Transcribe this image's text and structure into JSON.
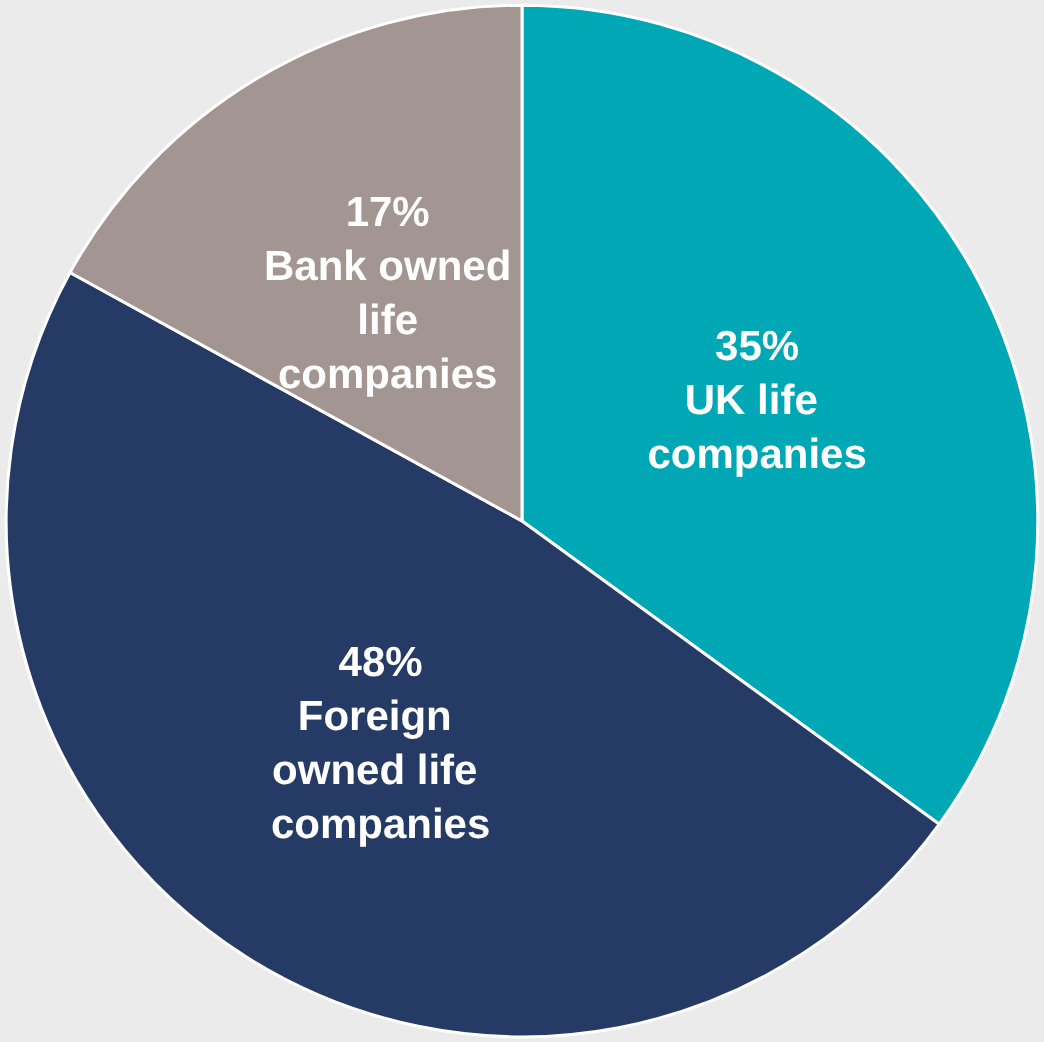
{
  "chart_data": {
    "type": "pie",
    "categories": [
      "UK life companies",
      "Foreign owned life companies",
      "Bank owned life companies"
    ],
    "values": [
      35,
      48,
      17
    ],
    "colors": [
      "#00a8b5",
      "#263a66",
      "#a39591"
    ],
    "value_labels": [
      "35%",
      "48%",
      "17%"
    ],
    "legend": false
  }
}
